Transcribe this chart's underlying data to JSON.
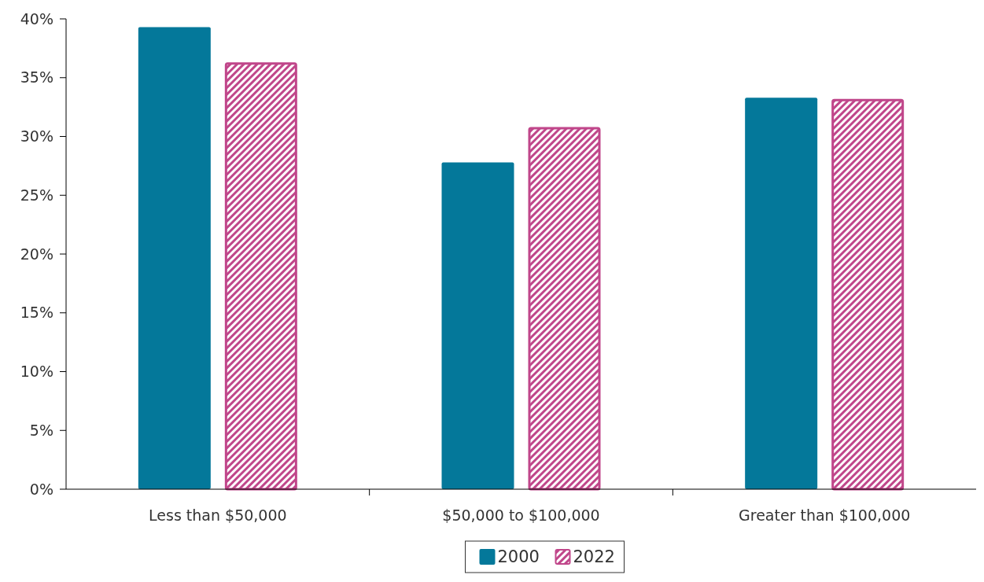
{
  "chart_data": {
    "type": "bar",
    "categories": [
      "Less than $50,000",
      "$50,000 to $100,000",
      "Greater than $100,000"
    ],
    "series": [
      {
        "name": "2000",
        "color": "#04789a",
        "values": [
          39.3,
          27.8,
          33.3
        ]
      },
      {
        "name": "2022",
        "color": "#c0468a",
        "values": [
          36.3,
          30.8,
          33.2
        ]
      }
    ],
    "ylim": [
      0,
      40
    ],
    "yticks": [
      {
        "value": 0,
        "label": "0%"
      },
      {
        "value": 5,
        "label": "5%"
      },
      {
        "value": 10,
        "label": "10%"
      },
      {
        "value": 15,
        "label": "15%"
      },
      {
        "value": 20,
        "label": "20%"
      },
      {
        "value": 25,
        "label": "25%"
      },
      {
        "value": 30,
        "label": "30%"
      },
      {
        "value": 35,
        "label": "35%"
      },
      {
        "value": 40,
        "label": "40%"
      }
    ],
    "grid": false,
    "legend": "bottom"
  }
}
